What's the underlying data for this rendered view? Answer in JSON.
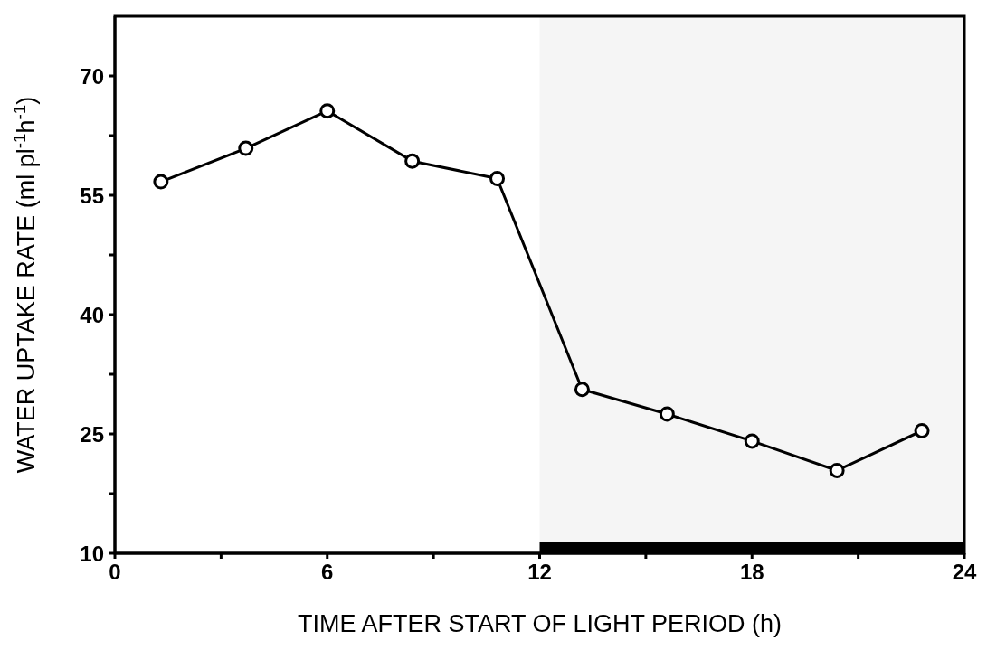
{
  "chart_data": {
    "type": "line",
    "xlabel": "TIME AFTER START OF LIGHT PERIOD (h)",
    "ylabel": "WATER UPTAKE RATE (ml pl$^{-1}$h$^{-1}$)",
    "x": [
      1.3,
      3.7,
      6.0,
      8.4,
      10.8,
      13.2,
      15.6,
      18.0,
      20.4,
      22.8
    ],
    "series": [
      {
        "color": "#000000",
        "values": [
          56.7,
          60.9,
          65.6,
          59.3,
          57.1,
          30.6,
          27.5,
          24.1,
          20.4,
          25.4
        ]
      }
    ],
    "xlim": [
      0,
      24
    ],
    "ylim": [
      10,
      77.5
    ],
    "xticks": [
      0,
      {
        "value": 3,
        "label": null
      },
      6,
      {
        "value": 9,
        "label": null
      },
      12,
      {
        "value": 15,
        "label": null
      },
      18,
      {
        "value": 21,
        "label": null
      },
      24
    ],
    "yticks": [
      10,
      {
        "value": 17.5,
        "label": null
      },
      25,
      {
        "value": 32.5,
        "label": null
      },
      40,
      {
        "value": 47.5,
        "label": null
      },
      55,
      {
        "value": 62.5,
        "label": null
      },
      70
    ],
    "bands": [
      {
        "axis": "x",
        "from": 12,
        "to": 24,
        "color": "#000000"
      }
    ],
    "marker": "circle",
    "line_style": "solid",
    "grid": false,
    "legend": false
  }
}
